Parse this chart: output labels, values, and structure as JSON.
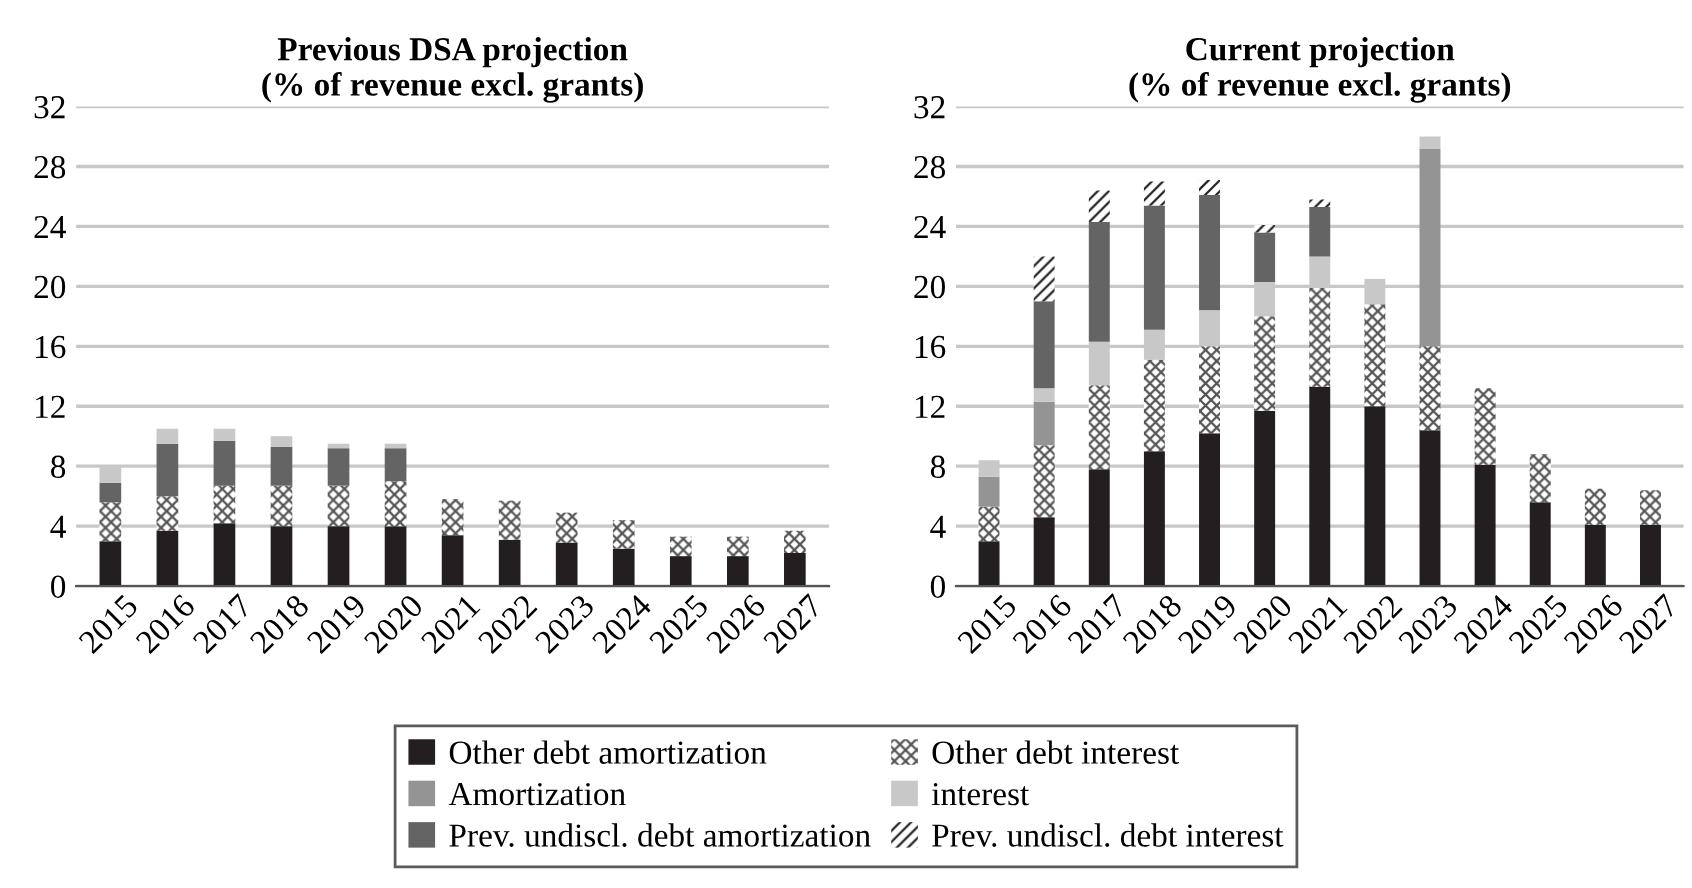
{
  "chart_data": [
    {
      "type": "bar",
      "stacked": true,
      "title": "Previous DSA projection\n(% of revenue excl. grants)",
      "categories": [
        "2015",
        "2016",
        "2017",
        "2018",
        "2019",
        "2020",
        "2021",
        "2022",
        "2023",
        "2024",
        "2025",
        "2026",
        "2027"
      ],
      "ylim": [
        0,
        32
      ],
      "yticks": [
        0,
        4,
        8,
        12,
        16,
        20,
        24,
        28,
        32
      ],
      "grid": "y",
      "legend": "bottom",
      "series": [
        {
          "color": "#231f20",
          "values": [
            3.0,
            3.7,
            4.2,
            4.0,
            4.0,
            4.0,
            3.4,
            3.1,
            2.9,
            2.5,
            2.0,
            2.0,
            2.2
          ]
        },
        {
          "color": "#9a9a9a",
          "values": [
            2.6,
            2.3,
            2.5,
            2.7,
            2.7,
            3.0,
            2.4,
            2.6,
            2.0,
            1.9,
            1.3,
            1.3,
            1.5
          ]
        },
        {
          "color": "#646464",
          "values": [
            1.3,
            3.5,
            3.0,
            2.6,
            2.5,
            2.2,
            null,
            null,
            null,
            null,
            null,
            null,
            null
          ]
        },
        {
          "color": "#c8c8c8",
          "values": [
            1.1,
            1.0,
            0.8,
            0.7,
            0.3,
            0.3,
            null,
            null,
            null,
            null,
            null,
            null,
            null
          ]
        }
      ]
    },
    {
      "type": "bar",
      "stacked": true,
      "title": "Current projection\n(% of revenue excl. grants)",
      "categories": [
        "2015",
        "2016",
        "2017",
        "2018",
        "2019",
        "2020",
        "2021",
        "2022",
        "2023",
        "2024",
        "2025",
        "2026",
        "2027"
      ],
      "ylim": [
        0,
        32
      ],
      "yticks": [
        0,
        4,
        8,
        12,
        16,
        20,
        24,
        28,
        32
      ],
      "grid": "y",
      "legend": "bottom",
      "series": [
        {
          "name": "Other debt amortization",
          "color": "#231f20",
          "values": [
            3.0,
            4.6,
            7.8,
            9.0,
            10.2,
            11.7,
            13.3,
            12.0,
            10.4,
            8.1,
            5.6,
            4.1,
            4.1
          ]
        },
        {
          "name": "Other debt interest",
          "color": "#9a9a9a",
          "values": [
            2.3,
            4.8,
            5.6,
            6.1,
            5.8,
            6.3,
            6.6,
            6.8,
            5.6,
            5.1,
            3.2,
            2.4,
            2.3
          ]
        },
        {
          "name": "Amortization",
          "color": "#949494",
          "values": [
            2.0,
            2.9,
            null,
            null,
            null,
            null,
            null,
            null,
            13.2,
            null,
            null,
            null,
            null
          ]
        },
        {
          "name": "interest",
          "color": "#c8c8c8",
          "values": [
            1.1,
            0.9,
            2.9,
            2.0,
            2.4,
            2.3,
            2.1,
            1.7,
            0.8,
            null,
            null,
            null,
            null
          ]
        },
        {
          "name": "Prev. undiscl. debt amortization",
          "color": "#646464",
          "values": [
            null,
            5.8,
            8.0,
            8.3,
            7.7,
            3.3,
            3.3,
            null,
            null,
            null,
            null,
            null,
            null
          ]
        },
        {
          "name": "Prev. undiscl. debt interest",
          "color": "#ffffff",
          "values": [
            null,
            3.0,
            2.1,
            1.6,
            1.0,
            0.5,
            0.5,
            null,
            null,
            null,
            null,
            null,
            null
          ]
        }
      ]
    }
  ]
}
